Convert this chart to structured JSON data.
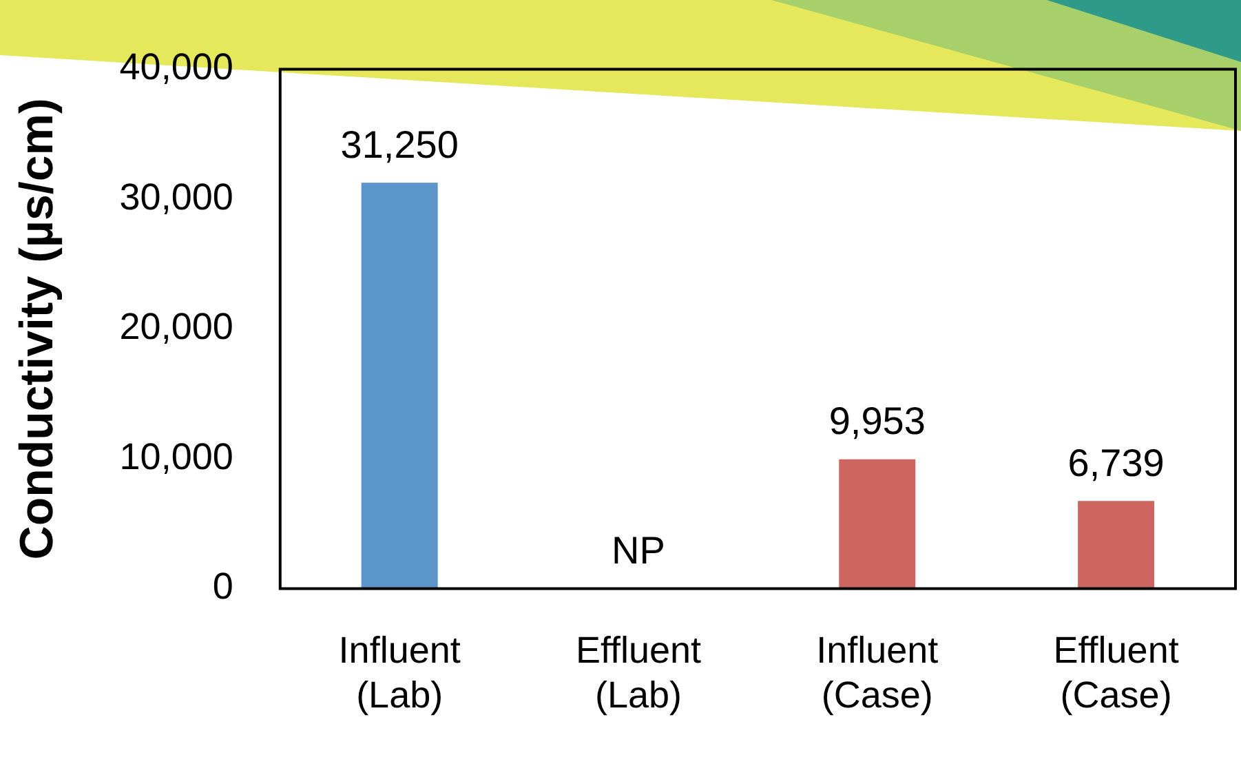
{
  "chart_data": {
    "type": "bar",
    "ylabel": "Conductivity (µs/cm)",
    "categories": [
      "Influent (Lab)",
      "Effluent (Lab)",
      "Influent (Case)",
      "Effluent (Case)"
    ],
    "values": [
      31250,
      null,
      9953,
      6739
    ],
    "colors": [
      "#5b95ca",
      "#cd6660",
      "#cd6660",
      "#cd6660"
    ],
    "value_labels": [
      "31,250",
      "NP",
      "9,953",
      "6,739"
    ],
    "ylim": [
      0,
      40000
    ],
    "yticks": [
      {
        "value": 0,
        "label": "0"
      },
      {
        "value": 10000,
        "label": "10,000"
      },
      {
        "value": 20000,
        "label": "20,000"
      },
      {
        "value": 30000,
        "label": "30,000"
      },
      {
        "value": 40000,
        "label": "40,000"
      }
    ],
    "grid": false,
    "legend": false
  }
}
